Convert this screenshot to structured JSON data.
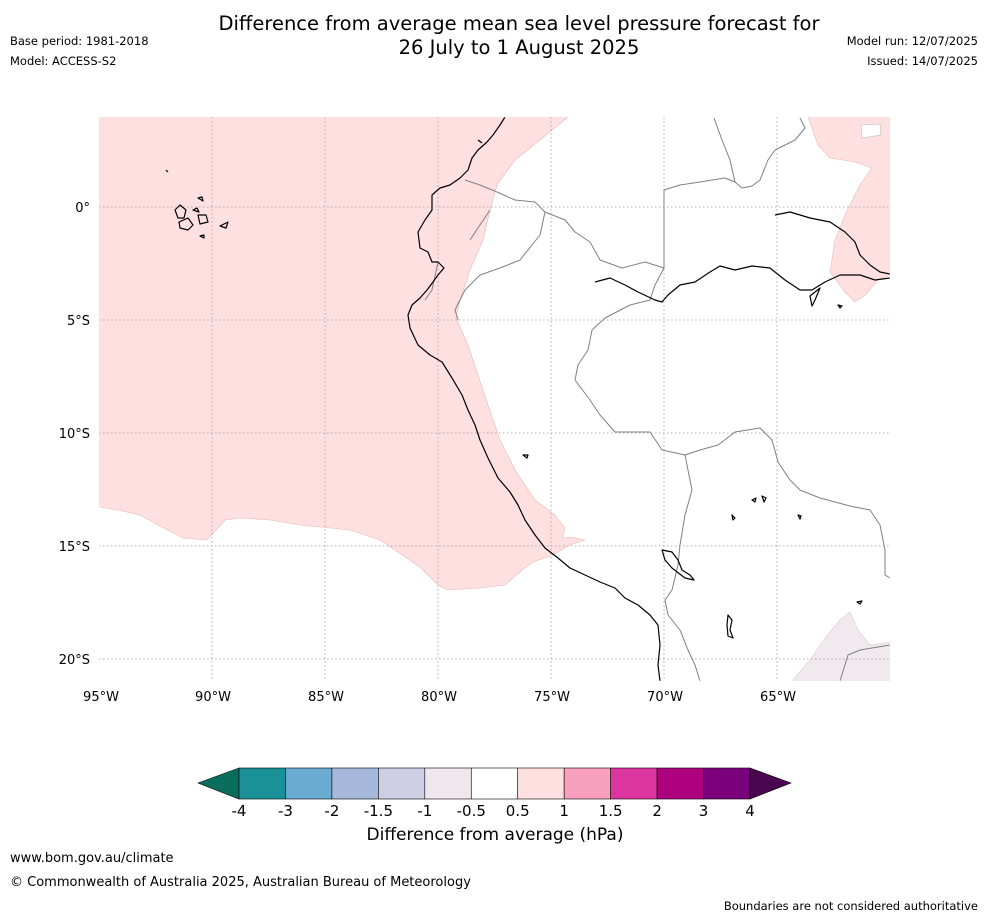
{
  "header": {
    "title_line1": "Difference from average mean sea level pressure forecast for",
    "title_line2": "26 July to 1 August 2025",
    "base_period": "Base period: 1981-2018",
    "model": "Model: ACCESS-S2",
    "model_run": "Model run: 12/07/2025",
    "issued": "Issued: 14/07/2025"
  },
  "map": {
    "lon_labels": [
      "95°W",
      "90°W",
      "85°W",
      "80°W",
      "75°W",
      "70°W",
      "65°W"
    ],
    "lat_labels": [
      "0°",
      "5°S",
      "10°S",
      "15°S",
      "20°S"
    ],
    "colors": {
      "ocean_anomaly": "#fde0df",
      "land_neutral": "#ffffff",
      "southeast_patch": "#f0e9ed",
      "coastline": "#000000",
      "borders": "#808080",
      "gridlines": "#999999"
    }
  },
  "colorbar": {
    "label": "Difference from average (hPa)",
    "tick_labels": [
      "-4",
      "-3",
      "-2",
      "-1.5",
      "-1",
      "-0.5",
      "0.5",
      "1",
      "1.5",
      "2",
      "3",
      "4"
    ],
    "low_extend_color": "#0a6e5e",
    "high_extend_color": "#4a0650",
    "bin_colors": [
      "#1a9196",
      "#6aabd2",
      "#a6b9dc",
      "#cecfe5",
      "#efe7ee",
      "#ffffff",
      "#fde0df",
      "#f9a0be",
      "#dd35a0",
      "#ad017e",
      "#7b007b"
    ]
  },
  "footer": {
    "url": "www.bom.gov.au/climate",
    "copyright": "© Commonwealth of Australia 2025, Australian Bureau of Meteorology",
    "disclaimer": "Boundaries are not considered authoritative"
  }
}
